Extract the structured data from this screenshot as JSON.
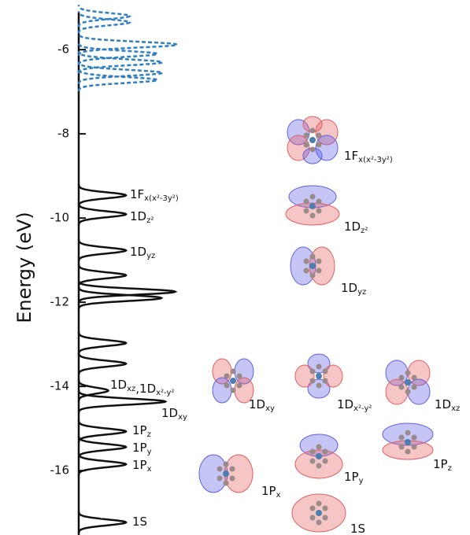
{
  "chart_data": {
    "type": "dos",
    "ylabel": "Energy (eV)",
    "ylim": [
      -17.53,
      -5.1
    ],
    "yticks": [
      -16,
      -14,
      -12,
      -10,
      -8,
      -6
    ],
    "xlim": [
      0,
      1
    ],
    "series": [
      {
        "color": "#111111",
        "dashed": false,
        "peaks": [
          {
            "energy": -9.46,
            "height": 0.48
          },
          {
            "energy": -9.91,
            "height": 0.48
          },
          {
            "energy": -10.77,
            "height": 0.48
          },
          {
            "energy": -11.36,
            "height": 0.48
          },
          {
            "energy": -11.75,
            "height": 0.98
          },
          {
            "energy": -11.9,
            "height": 0.84
          },
          {
            "energy": -12.97,
            "height": 0.48
          },
          {
            "energy": -13.46,
            "height": 0.48
          },
          {
            "energy": -14.1,
            "height": 0.3
          },
          {
            "energy": -14.36,
            "height": 0.88
          },
          {
            "energy": -15.07,
            "height": 0.48
          },
          {
            "energy": -15.44,
            "height": 0.48
          },
          {
            "energy": -15.85,
            "height": 0.48
          },
          {
            "energy": -17.23,
            "height": 0.48
          }
        ]
      },
      {
        "color": "#2f7fc1",
        "dashed": true,
        "peaks": [
          {
            "energy": -5.2,
            "height": 0.52
          },
          {
            "energy": -5.35,
            "height": 0.52
          },
          {
            "energy": -5.88,
            "height": 1.0
          },
          {
            "energy": -6.1,
            "height": 0.8
          },
          {
            "energy": -6.3,
            "height": 0.85
          },
          {
            "energy": -6.55,
            "height": 0.85
          },
          {
            "energy": -6.72,
            "height": 0.8
          }
        ]
      }
    ],
    "peak_labels": [
      [
        {
          "text": "1F",
          "sub": "x(x²-3y²)"
        }
      ],
      [
        {
          "text": "1D",
          "sub": "z²"
        }
      ],
      [
        {
          "text": "1D",
          "sub": "yz"
        }
      ],
      [
        {
          "text": "1D",
          "sub": "xz"
        },
        {
          "text": ",1D",
          "sub": "x²-y²"
        }
      ],
      [
        {
          "text": "1D",
          "sub": "xy"
        }
      ],
      [
        {
          "text": "1P",
          "sub": "z"
        }
      ],
      [
        {
          "text": "1P",
          "sub": "y"
        }
      ],
      [
        {
          "text": "1P",
          "sub": "x"
        }
      ],
      [
        {
          "text": "1S"
        }
      ]
    ],
    "orbitals": [
      [
        {
          "text": "1F",
          "sub": "x(x²-3y²)"
        }
      ],
      [
        {
          "text": "1D",
          "sub": "z²"
        }
      ],
      [
        {
          "text": "1D",
          "sub": "yz"
        }
      ],
      [
        {
          "text": "1D",
          "sub": "xy"
        }
      ],
      [
        {
          "text": "1D",
          "sub": "x²-y²"
        }
      ],
      [
        {
          "text": "1D",
          "sub": "xz"
        }
      ],
      [
        {
          "text": "1P",
          "sub": "z"
        }
      ],
      [
        {
          "text": "1P",
          "sub": "y"
        }
      ],
      [
        {
          "text": "1P",
          "sub": "x"
        }
      ],
      [
        {
          "text": "1S"
        }
      ]
    ]
  }
}
